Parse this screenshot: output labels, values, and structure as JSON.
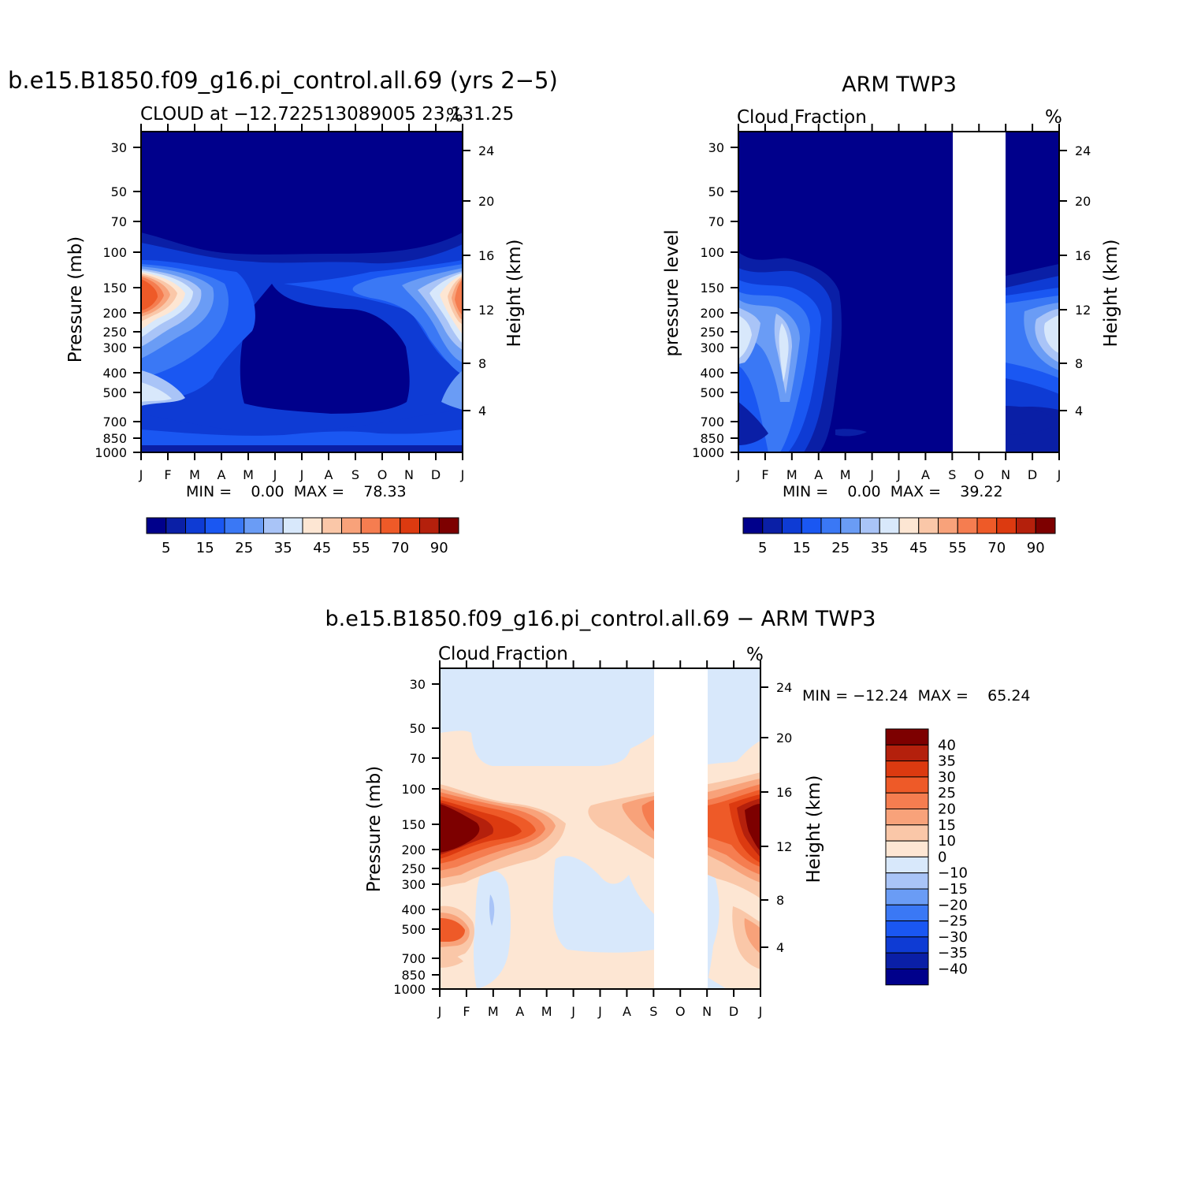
{
  "months": [
    "J",
    "F",
    "M",
    "A",
    "M",
    "J",
    "J",
    "A",
    "S",
    "O",
    "N",
    "D",
    "J"
  ],
  "pressure_ticks": [
    "30",
    "50",
    "70",
    "100",
    "150",
    "200",
    "250",
    "300",
    "400",
    "500",
    "700",
    "850",
    "1000"
  ],
  "height_ticks": [
    "24",
    "20",
    "16",
    "12",
    "8",
    "4"
  ],
  "colorbar_labels": [
    "5",
    "15",
    "25",
    "35",
    "45",
    "55",
    "70",
    "90"
  ],
  "colorbar_colors": [
    "#00008b",
    "#0a1fa6",
    "#0e3bd4",
    "#1a57f2",
    "#3a78f5",
    "#6a9cf5",
    "#a9c4f7",
    "#d8e8fb",
    "#fde6d3",
    "#fac7a8",
    "#f8a27a",
    "#f57d50",
    "#ee5a28",
    "#dc3a10",
    "#b4200c",
    "#7d0000"
  ],
  "diff_colorbar_labels": [
    "40",
    "35",
    "30",
    "25",
    "20",
    "15",
    "10",
    "0",
    "−10",
    "−15",
    "−20",
    "−25",
    "−30",
    "−35",
    "−40"
  ],
  "diff_colorbar_colors": [
    "#7d0000",
    "#b4200c",
    "#dc3a10",
    "#ee5a28",
    "#f57d50",
    "#f8a27a",
    "#fac7a8",
    "#fde6d3",
    "#d8e8fb",
    "#a9c4f7",
    "#6a9cf5",
    "#3a78f5",
    "#1a57f2",
    "#0e3bd4",
    "#0a1fa6",
    "#00008b"
  ],
  "panel1": {
    "title": "b.e15.B1850.f09_g16.pi_control.all.69 (yrs 2−5)",
    "subtitle": "CLOUD at −12.722513089005 23,131.25",
    "unit": "%",
    "ylabel": "Pressure (mb)",
    "y2label": "Height (km)",
    "stats": "MIN =    0.00  MAX =    78.33"
  },
  "panel2": {
    "title": "ARM TWP3",
    "subtitle": "Cloud Fraction",
    "unit": "%",
    "ylabel": "pressure level",
    "y2label": "Height (km)",
    "stats": "MIN =    0.00  MAX =    39.22"
  },
  "panel3": {
    "title": "b.e15.B1850.f09_g16.pi_control.all.69 − ARM TWP3",
    "subtitle": "Cloud Fraction",
    "unit": "%",
    "ylabel": "Pressure (mb)",
    "y2label": "Height (km)",
    "stats": "MIN = −12.24  MAX =    65.24"
  },
  "chart_data": [
    {
      "type": "heatmap",
      "title": "b.e15.B1850.f09_g16.pi_control.all.69 (yrs 2−5)",
      "subtitle": "CLOUD at −12.722513089005 23,131.25",
      "x": [
        "J",
        "F",
        "M",
        "A",
        "M",
        "J",
        "J",
        "A",
        "S",
        "O",
        "N",
        "D",
        "J"
      ],
      "y_pressure_mb": [
        30,
        50,
        70,
        100,
        150,
        200,
        250,
        300,
        400,
        500,
        700,
        850,
        1000
      ],
      "y2_height_km": [
        24,
        20,
        16,
        12,
        8,
        4
      ],
      "ylabel": "Pressure (mb)",
      "y2label": "Height (km)",
      "unit": "%",
      "min": 0.0,
      "max": 78.33,
      "levels": [
        5,
        10,
        15,
        20,
        25,
        30,
        35,
        40,
        45,
        50,
        55,
        60,
        70,
        80,
        90
      ]
    },
    {
      "type": "heatmap",
      "title": "ARM TWP3",
      "subtitle": "Cloud Fraction",
      "x": [
        "J",
        "F",
        "M",
        "A",
        "M",
        "J",
        "J",
        "A",
        "S",
        "O",
        "N",
        "D",
        "J"
      ],
      "y_pressure_mb": [
        30,
        50,
        70,
        100,
        150,
        200,
        250,
        300,
        400,
        500,
        700,
        850,
        1000
      ],
      "y2_height_km": [
        24,
        20,
        16,
        12,
        8,
        4
      ],
      "ylabel": "pressure level",
      "y2label": "Height (km)",
      "unit": "%",
      "min": 0.0,
      "max": 39.22,
      "missing_months": [
        "S",
        "O",
        "N"
      ],
      "levels": [
        5,
        10,
        15,
        20,
        25,
        30,
        35,
        40,
        45,
        50,
        55,
        60,
        70,
        80,
        90
      ]
    },
    {
      "type": "heatmap",
      "title": "b.e15.B1850.f09_g16.pi_control.all.69 − ARM TWP3",
      "subtitle": "Cloud Fraction",
      "x": [
        "J",
        "F",
        "M",
        "A",
        "M",
        "J",
        "J",
        "A",
        "S",
        "O",
        "N",
        "D",
        "J"
      ],
      "y_pressure_mb": [
        30,
        50,
        70,
        100,
        150,
        200,
        250,
        300,
        400,
        500,
        700,
        850,
        1000
      ],
      "y2_height_km": [
        24,
        20,
        16,
        12,
        8,
        4
      ],
      "ylabel": "Pressure (mb)",
      "y2label": "Height (km)",
      "unit": "%",
      "min": -12.24,
      "max": 65.24,
      "missing_months": [
        "S",
        "O",
        "N"
      ],
      "levels": [
        -40,
        -35,
        -30,
        -25,
        -20,
        -15,
        -10,
        0,
        10,
        15,
        20,
        25,
        30,
        35,
        40
      ]
    }
  ]
}
